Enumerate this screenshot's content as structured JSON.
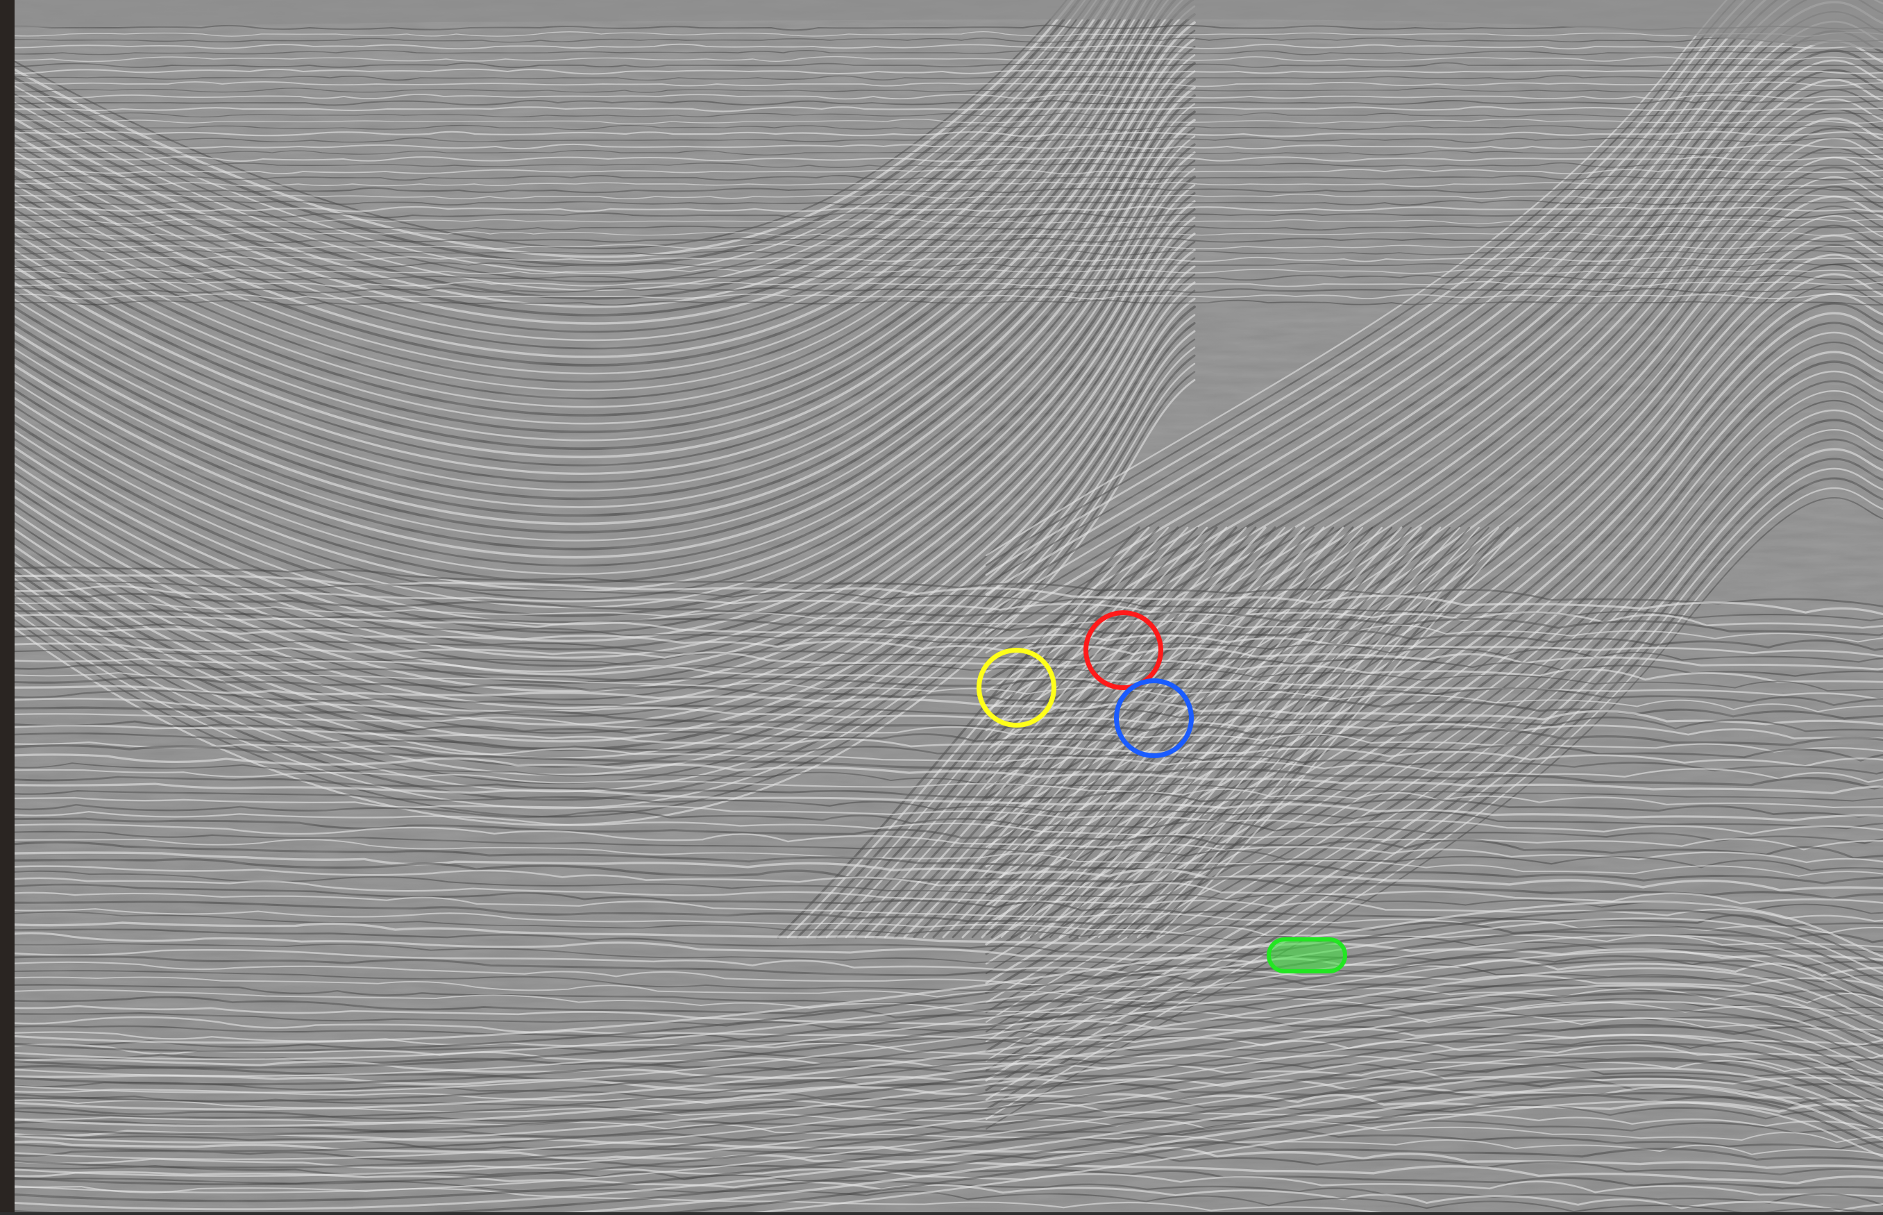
{
  "image": {
    "subject": "seismic-section",
    "background_color": "#8a8a8a",
    "frame_left_color": "#2a2522"
  },
  "markers": [
    {
      "name": "yellow-circle-marker",
      "shape": "circle",
      "color": "#ffff1a"
    },
    {
      "name": "red-circle-marker",
      "shape": "circle",
      "color": "#ff1a1a"
    },
    {
      "name": "blue-circle-marker",
      "shape": "circle",
      "color": "#1a5cff"
    },
    {
      "name": "green-capsule-marker",
      "shape": "capsule",
      "color": "#22e622"
    }
  ]
}
